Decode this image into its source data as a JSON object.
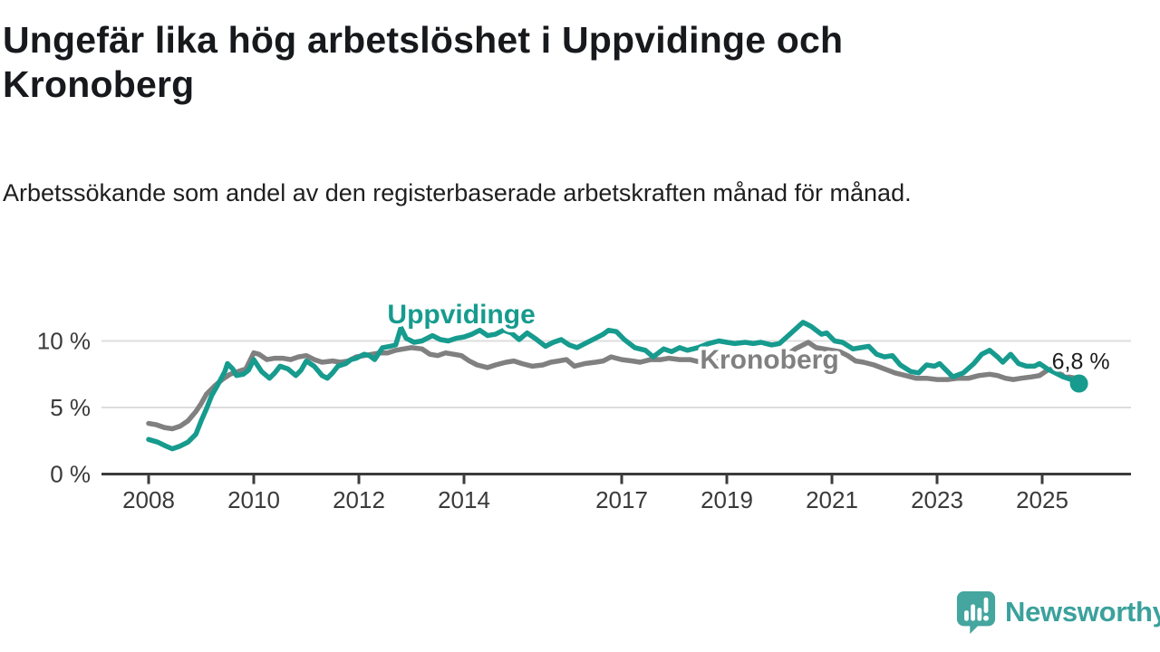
{
  "header": {
    "title": "Ungefär lika hög arbetslöshet i Uppvidinge och Kronoberg",
    "subtitle": "Arbetssökande som andel av den registerbaserade arbetskraften månad för månad."
  },
  "chart_data": {
    "type": "line",
    "title": "",
    "xlabel": "",
    "ylabel": "",
    "unit": "%",
    "grid": "horizontal-only",
    "legend": "inline-labels",
    "x_axis": {
      "range": [
        2007.1,
        2026.7
      ],
      "ticks": [
        "2008",
        "2010",
        "2012",
        "2014",
        "2017",
        "2019",
        "2021",
        "2023",
        "2025"
      ],
      "tick_years": [
        2008,
        2010,
        2012,
        2014,
        2017,
        2019,
        2021,
        2023,
        2025
      ]
    },
    "y_axis": {
      "range": [
        0,
        12.2
      ],
      "ticks": [
        {
          "value": 10,
          "label": "10 %",
          "gridline": true
        },
        {
          "value": 5,
          "label": "5 %",
          "gridline": true
        },
        {
          "value": 0,
          "label": "0 %",
          "gridline": false
        }
      ]
    },
    "end_label": "6,8 %",
    "latest_value": "6,8 %",
    "series": [
      {
        "name": "Uppvidinge",
        "color": "#169b8e",
        "label_anchor": {
          "year": 2013.95,
          "pct": 11.33
        },
        "points": [
          [
            2008.0,
            2.6
          ],
          [
            2008.17,
            2.4
          ],
          [
            2008.33,
            2.1
          ],
          [
            2008.45,
            1.9
          ],
          [
            2008.6,
            2.1
          ],
          [
            2008.75,
            2.4
          ],
          [
            2008.9,
            3.0
          ],
          [
            2009.0,
            4.0
          ],
          [
            2009.1,
            4.9
          ],
          [
            2009.2,
            5.9
          ],
          [
            2009.33,
            6.8
          ],
          [
            2009.45,
            7.7
          ],
          [
            2009.5,
            8.3
          ],
          [
            2009.6,
            7.9
          ],
          [
            2009.67,
            7.4
          ],
          [
            2009.8,
            7.5
          ],
          [
            2009.9,
            7.8
          ],
          [
            2010.0,
            8.6
          ],
          [
            2010.15,
            7.7
          ],
          [
            2010.3,
            7.2
          ],
          [
            2010.4,
            7.6
          ],
          [
            2010.5,
            8.1
          ],
          [
            2010.65,
            7.9
          ],
          [
            2010.8,
            7.4
          ],
          [
            2010.9,
            7.8
          ],
          [
            2011.0,
            8.5
          ],
          [
            2011.15,
            8.1
          ],
          [
            2011.3,
            7.4
          ],
          [
            2011.4,
            7.2
          ],
          [
            2011.5,
            7.6
          ],
          [
            2011.6,
            8.1
          ],
          [
            2011.75,
            8.3
          ],
          [
            2011.85,
            8.6
          ],
          [
            2011.95,
            8.7
          ],
          [
            2012.1,
            9.0
          ],
          [
            2012.2,
            8.9
          ],
          [
            2012.3,
            8.6
          ],
          [
            2012.45,
            9.5
          ],
          [
            2012.6,
            9.6
          ],
          [
            2012.7,
            9.7
          ],
          [
            2012.8,
            11.0
          ],
          [
            2012.9,
            10.2
          ],
          [
            2013.05,
            9.9
          ],
          [
            2013.2,
            10.0
          ],
          [
            2013.4,
            10.4
          ],
          [
            2013.55,
            10.1
          ],
          [
            2013.7,
            10.0
          ],
          [
            2013.85,
            10.2
          ],
          [
            2014.0,
            10.3
          ],
          [
            2014.15,
            10.5
          ],
          [
            2014.3,
            10.8
          ],
          [
            2014.45,
            10.4
          ],
          [
            2014.6,
            10.5
          ],
          [
            2014.75,
            10.8
          ],
          [
            2014.9,
            10.6
          ],
          [
            2015.05,
            10.1
          ],
          [
            2015.2,
            10.6
          ],
          [
            2015.35,
            10.2
          ],
          [
            2015.55,
            9.6
          ],
          [
            2015.7,
            9.9
          ],
          [
            2015.85,
            10.1
          ],
          [
            2016.0,
            9.7
          ],
          [
            2016.15,
            9.5
          ],
          [
            2016.3,
            9.8
          ],
          [
            2016.5,
            10.2
          ],
          [
            2016.65,
            10.5
          ],
          [
            2016.75,
            10.8
          ],
          [
            2016.9,
            10.7
          ],
          [
            2017.05,
            10.1
          ],
          [
            2017.25,
            9.5
          ],
          [
            2017.45,
            9.3
          ],
          [
            2017.6,
            8.8
          ],
          [
            2017.8,
            9.4
          ],
          [
            2017.95,
            9.2
          ],
          [
            2018.1,
            9.5
          ],
          [
            2018.25,
            9.3
          ],
          [
            2018.45,
            9.5
          ],
          [
            2018.65,
            9.8
          ],
          [
            2018.85,
            10.0
          ],
          [
            2019.0,
            9.9
          ],
          [
            2019.15,
            9.8
          ],
          [
            2019.35,
            9.9
          ],
          [
            2019.5,
            9.8
          ],
          [
            2019.65,
            9.9
          ],
          [
            2019.85,
            9.7
          ],
          [
            2020.0,
            9.8
          ],
          [
            2020.2,
            10.5
          ],
          [
            2020.45,
            11.4
          ],
          [
            2020.6,
            11.1
          ],
          [
            2020.8,
            10.5
          ],
          [
            2020.9,
            10.6
          ],
          [
            2021.05,
            10.0
          ],
          [
            2021.2,
            9.9
          ],
          [
            2021.4,
            9.4
          ],
          [
            2021.55,
            9.5
          ],
          [
            2021.7,
            9.6
          ],
          [
            2021.85,
            9.0
          ],
          [
            2022.0,
            8.8
          ],
          [
            2022.15,
            8.9
          ],
          [
            2022.3,
            8.2
          ],
          [
            2022.5,
            7.7
          ],
          [
            2022.65,
            7.6
          ],
          [
            2022.8,
            8.2
          ],
          [
            2022.95,
            8.1
          ],
          [
            2023.05,
            8.3
          ],
          [
            2023.15,
            7.9
          ],
          [
            2023.3,
            7.3
          ],
          [
            2023.5,
            7.6
          ],
          [
            2023.7,
            8.3
          ],
          [
            2023.85,
            9.0
          ],
          [
            2024.0,
            9.3
          ],
          [
            2024.15,
            8.8
          ],
          [
            2024.25,
            8.4
          ],
          [
            2024.4,
            9.0
          ],
          [
            2024.55,
            8.3
          ],
          [
            2024.7,
            8.1
          ],
          [
            2024.85,
            8.1
          ],
          [
            2024.95,
            8.3
          ],
          [
            2025.1,
            7.9
          ],
          [
            2025.25,
            7.6
          ],
          [
            2025.4,
            7.3
          ],
          [
            2025.55,
            7.1
          ],
          [
            2025.7,
            6.8
          ]
        ]
      },
      {
        "name": "Kronoberg",
        "color": "#808080",
        "label_anchor": {
          "year": 2019.81,
          "pct": 7.93
        },
        "points": [
          [
            2008.0,
            3.8
          ],
          [
            2008.15,
            3.7
          ],
          [
            2008.3,
            3.5
          ],
          [
            2008.45,
            3.4
          ],
          [
            2008.6,
            3.6
          ],
          [
            2008.75,
            4.0
          ],
          [
            2008.9,
            4.7
          ],
          [
            2009.0,
            5.3
          ],
          [
            2009.1,
            6.0
          ],
          [
            2009.25,
            6.6
          ],
          [
            2009.4,
            7.1
          ],
          [
            2009.55,
            7.5
          ],
          [
            2009.7,
            7.7
          ],
          [
            2009.85,
            7.9
          ],
          [
            2010.0,
            9.1
          ],
          [
            2010.1,
            9.0
          ],
          [
            2010.25,
            8.6
          ],
          [
            2010.4,
            8.7
          ],
          [
            2010.55,
            8.7
          ],
          [
            2010.7,
            8.6
          ],
          [
            2010.85,
            8.8
          ],
          [
            2011.0,
            8.9
          ],
          [
            2011.15,
            8.6
          ],
          [
            2011.3,
            8.4
          ],
          [
            2011.5,
            8.5
          ],
          [
            2011.65,
            8.4
          ],
          [
            2011.8,
            8.5
          ],
          [
            2011.95,
            8.8
          ],
          [
            2012.1,
            8.9
          ],
          [
            2012.25,
            9.0
          ],
          [
            2012.4,
            9.1
          ],
          [
            2012.55,
            9.1
          ],
          [
            2012.7,
            9.3
          ],
          [
            2012.85,
            9.4
          ],
          [
            2013.0,
            9.5
          ],
          [
            2013.2,
            9.4
          ],
          [
            2013.35,
            9.0
          ],
          [
            2013.5,
            8.9
          ],
          [
            2013.65,
            9.1
          ],
          [
            2013.8,
            9.0
          ],
          [
            2013.95,
            8.9
          ],
          [
            2014.1,
            8.5
          ],
          [
            2014.25,
            8.2
          ],
          [
            2014.45,
            8.0
          ],
          [
            2014.6,
            8.2
          ],
          [
            2014.8,
            8.4
          ],
          [
            2014.95,
            8.5
          ],
          [
            2015.1,
            8.3
          ],
          [
            2015.3,
            8.1
          ],
          [
            2015.5,
            8.2
          ],
          [
            2015.65,
            8.4
          ],
          [
            2015.8,
            8.5
          ],
          [
            2015.95,
            8.6
          ],
          [
            2016.1,
            8.1
          ],
          [
            2016.3,
            8.3
          ],
          [
            2016.5,
            8.4
          ],
          [
            2016.65,
            8.5
          ],
          [
            2016.8,
            8.8
          ],
          [
            2017.0,
            8.6
          ],
          [
            2017.2,
            8.5
          ],
          [
            2017.35,
            8.4
          ],
          [
            2017.55,
            8.6
          ],
          [
            2017.75,
            8.6
          ],
          [
            2017.9,
            8.7
          ],
          [
            2018.1,
            8.6
          ],
          [
            2018.3,
            8.6
          ],
          [
            2018.5,
            8.4
          ],
          [
            2018.7,
            8.4
          ],
          [
            2018.9,
            8.5
          ],
          [
            2019.1,
            8.5
          ],
          [
            2019.3,
            8.5
          ],
          [
            2019.5,
            8.5
          ],
          [
            2019.7,
            8.6
          ],
          [
            2019.9,
            8.6
          ],
          [
            2020.1,
            8.8
          ],
          [
            2020.3,
            9.4
          ],
          [
            2020.45,
            9.7
          ],
          [
            2020.55,
            9.9
          ],
          [
            2020.7,
            9.5
          ],
          [
            2020.85,
            9.4
          ],
          [
            2021.0,
            9.3
          ],
          [
            2021.15,
            9.2
          ],
          [
            2021.3,
            8.9
          ],
          [
            2021.45,
            8.5
          ],
          [
            2021.6,
            8.4
          ],
          [
            2021.8,
            8.2
          ],
          [
            2022.0,
            7.9
          ],
          [
            2022.2,
            7.6
          ],
          [
            2022.4,
            7.4
          ],
          [
            2022.6,
            7.2
          ],
          [
            2022.8,
            7.2
          ],
          [
            2023.0,
            7.1
          ],
          [
            2023.2,
            7.1
          ],
          [
            2023.4,
            7.2
          ],
          [
            2023.6,
            7.2
          ],
          [
            2023.8,
            7.4
          ],
          [
            2024.0,
            7.5
          ],
          [
            2024.15,
            7.4
          ],
          [
            2024.3,
            7.2
          ],
          [
            2024.45,
            7.1
          ],
          [
            2024.6,
            7.2
          ],
          [
            2024.8,
            7.3
          ],
          [
            2024.95,
            7.4
          ],
          [
            2025.1,
            7.8
          ],
          [
            2025.2,
            7.9
          ],
          [
            2025.35,
            7.5
          ],
          [
            2025.5,
            7.3
          ],
          [
            2025.65,
            7.2
          ]
        ]
      }
    ]
  },
  "footer": {
    "logo_text": "Newsworthy"
  },
  "colors": {
    "accent_teal": "#169b8e",
    "series_gray": "#808080",
    "logo_teal": "#45a59f",
    "logo_text_teal": "#3ba19c",
    "title_text": "#17191c",
    "axis_text": "#3a3a3a",
    "axis_line": "#3b3b3b",
    "gridline": "#dddddd",
    "background": "#ffffff"
  }
}
